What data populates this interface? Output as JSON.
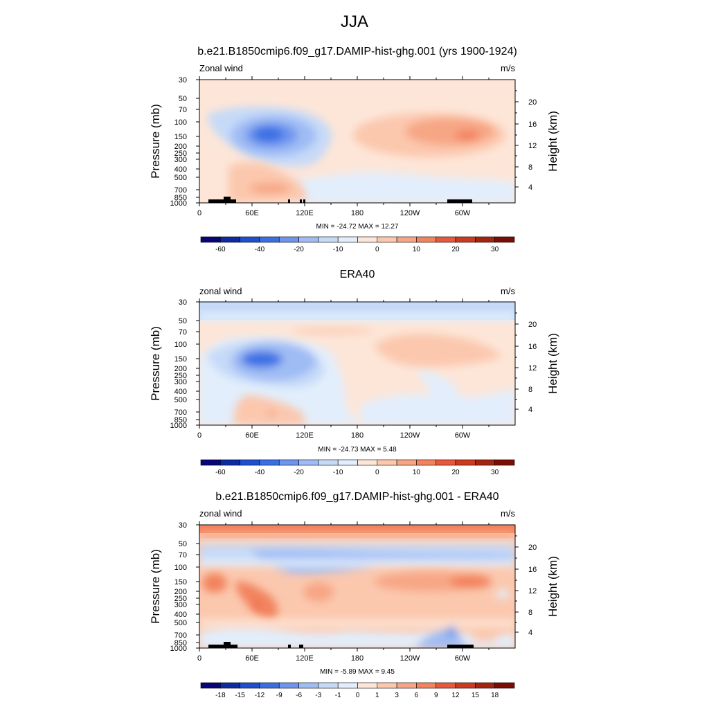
{
  "page": {
    "title": "JJA"
  },
  "panels": [
    {
      "title": "b.e21.B1850cmip6.f09_g17.DAMIP-hist-ghg.001 (yrs 1900-1924)",
      "label_left": "Zonal wind",
      "label_right": "m/s",
      "stats": "MIN = -24.72  MAX =  12.27"
    },
    {
      "title": "ERA40",
      "label_left": "zonal wind",
      "label_right": "m/s",
      "stats": "MIN = -24.73  MAX =   5.48"
    },
    {
      "title": "b.e21.B1850cmip6.f09_g17.DAMIP-hist-ghg.001 - ERA40",
      "label_left": "zonal wind",
      "label_right": "m/s",
      "stats": "MIN =  -5.89  MAX =   9.45"
    }
  ],
  "axes": {
    "ylabel_left": "Pressure (mb)",
    "ylabel_right": "Height (km)",
    "pressure_ticks": [
      "30",
      "50",
      "70",
      "100",
      "150",
      "200",
      "250",
      "300",
      "400",
      "500",
      "700",
      "850",
      "1000"
    ],
    "height_ticks": [
      "20",
      "16",
      "12",
      "8",
      "4"
    ],
    "lon_ticks": [
      "0",
      "60E",
      "120E",
      "180",
      "120W",
      "60W"
    ]
  },
  "colorbars": {
    "absolute_labels": [
      "-60",
      "-40",
      "-20",
      "-10",
      "0",
      "10",
      "20",
      "30"
    ],
    "difference_labels": [
      "-18",
      "-15",
      "-12",
      "-9",
      "-6",
      "-3",
      "-1",
      "0",
      "1",
      "3",
      "6",
      "9",
      "12",
      "15",
      "18"
    ],
    "colors": [
      "#08047a",
      "#0c2ba3",
      "#1f4fd0",
      "#3a6fe4",
      "#6e95ee",
      "#9fbcf4",
      "#c6daf8",
      "#e2eefc",
      "#fde6d8",
      "#fbc8ae",
      "#f7a685",
      "#f2835d",
      "#e8583a",
      "#cc3a1f",
      "#a52410",
      "#7b0d05"
    ]
  },
  "chart_data": [
    {
      "type": "heatmap",
      "title": "b.e21.B1850cmip6.f09_g17.DAMIP-hist-ghg.001 (yrs 1900-1924)",
      "variable": "Zonal wind",
      "units": "m/s",
      "x": "longitude",
      "y": "pressure (mb)",
      "min": -24.72,
      "max": 12.27,
      "levels": [
        -70,
        -60,
        -50,
        -40,
        -30,
        -20,
        -15,
        -10,
        -5,
        0,
        5,
        10,
        15,
        20,
        25,
        30,
        35
      ],
      "features": [
        {
          "lon": 80,
          "pressure": 150,
          "value": -24
        },
        {
          "lon": 310,
          "pressure": 150,
          "value": 12
        },
        {
          "lon": 80,
          "pressure": 700,
          "value": 7
        }
      ]
    },
    {
      "type": "heatmap",
      "title": "ERA40",
      "variable": "zonal wind",
      "units": "m/s",
      "x": "longitude",
      "y": "pressure (mb)",
      "min": -24.73,
      "max": 5.48,
      "levels": [
        -70,
        -60,
        -50,
        -40,
        -30,
        -20,
        -15,
        -10,
        -5,
        0,
        5,
        10,
        15,
        20,
        25,
        30,
        35
      ],
      "features": [
        {
          "lon": 75,
          "pressure": 150,
          "value": -24
        },
        {
          "lon": 290,
          "pressure": 130,
          "value": 5
        },
        {
          "lon": 0,
          "pressure": 30,
          "value": -8
        }
      ]
    },
    {
      "type": "heatmap",
      "title": "b.e21.B1850cmip6.f09_g17.DAMIP-hist-ghg.001 - ERA40",
      "variable": "zonal wind",
      "units": "m/s",
      "x": "longitude",
      "y": "pressure (mb)",
      "min": -5.89,
      "max": 9.45,
      "levels": [
        -21,
        -18,
        -15,
        -12,
        -9,
        -6,
        -3,
        -1,
        0,
        1,
        3,
        6,
        9,
        12,
        15,
        18,
        21
      ],
      "features": [
        {
          "lon": 180,
          "pressure": 30,
          "value": 8
        },
        {
          "lon": 120,
          "pressure": 80,
          "value": -5
        },
        {
          "lon": 65,
          "pressure": 250,
          "value": 9
        },
        {
          "lon": 300,
          "pressure": 150,
          "value": 7
        },
        {
          "lon": 285,
          "pressure": 800,
          "value": -4
        }
      ]
    }
  ]
}
